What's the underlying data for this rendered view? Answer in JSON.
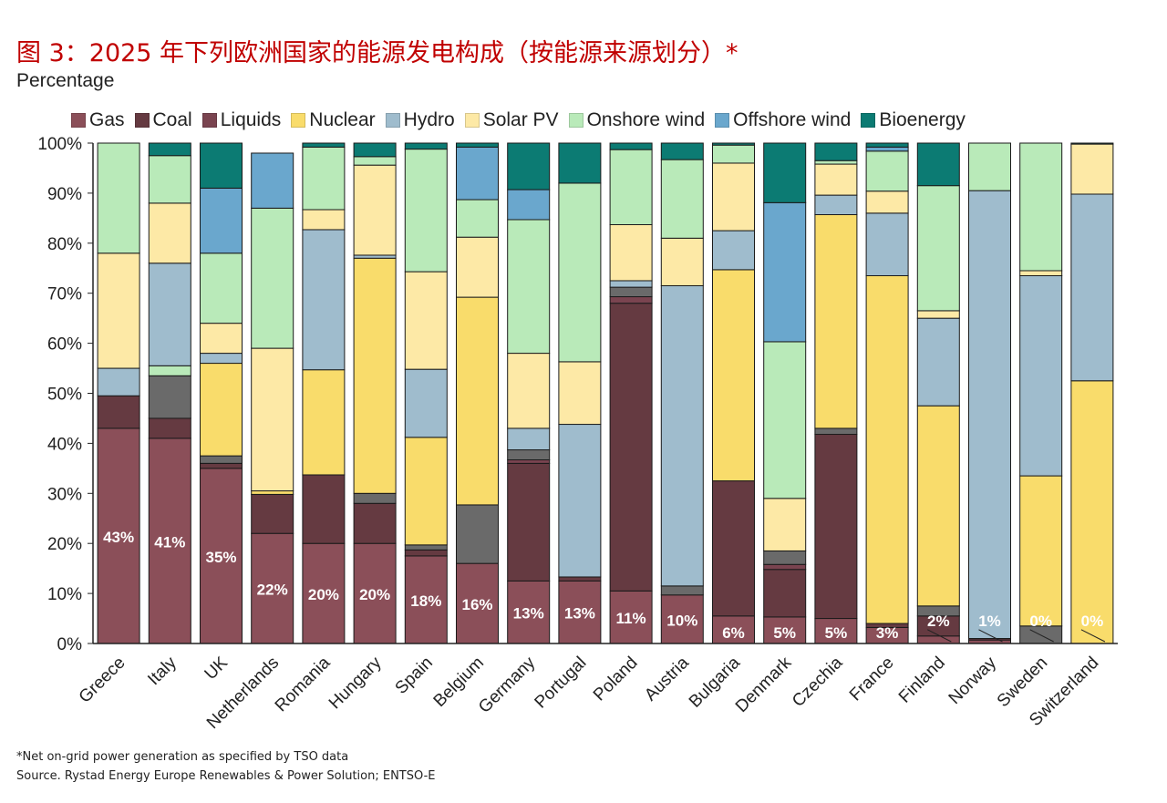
{
  "title": "图 3：2025 年下列欧洲国家的能源发电构成（按能源来源划分）*",
  "footnote": "*Net on-grid power generation as specified by TSO data",
  "source": "Source. Rystad Energy Europe Renewables & Power Solution; ENTSO-E",
  "colors": {
    "Gas": "#8b4f59",
    "Coal": "#653a41",
    "Liquids": "#7a4450",
    "Nuclear": "#f9dc6b",
    "Hydro": "#9fbccd",
    "Solar PV": "#fde9a6",
    "Onshore wind": "#b9eab9",
    "Offshore wind": "#6aa7cd",
    "Bioenergy": "#0c7b73",
    "Other": "#6a6a6a"
  },
  "chart_data": {
    "type": "bar",
    "stacked": true,
    "title": "图 3：2025 年下列欧洲国家的能源发电构成（按能源来源划分）*",
    "ylabel": "Percentage",
    "ylim": [
      0,
      100
    ],
    "yticks": [
      "0%",
      "10%",
      "20%",
      "30%",
      "40%",
      "50%",
      "60%",
      "70%",
      "80%",
      "90%",
      "100%"
    ],
    "legend": [
      "Gas",
      "Coal",
      "Liquids",
      "Nuclear",
      "Hydro",
      "Solar PV",
      "Onshore wind",
      "Offshore wind",
      "Bioenergy"
    ],
    "categories": [
      "Greece",
      "Italy",
      "UK",
      "Netherlands",
      "Romania",
      "Hungary",
      "Spain",
      "Belgium",
      "Germany",
      "Portugal",
      "Poland",
      "Austria",
      "Bulgaria",
      "Denmark",
      "Czechia",
      "France",
      "Finland",
      "Norway",
      "Sweden",
      "Switzerland"
    ],
    "gas_labels": [
      "43%",
      "41%",
      "35%",
      "22%",
      "20%",
      "20%",
      "18%",
      "16%",
      "13%",
      "13%",
      "11%",
      "10%",
      "6%",
      "5%",
      "5%",
      "3%",
      "2%",
      "1%",
      "0%",
      "0%"
    ],
    "stacks": [
      [
        [
          "Gas",
          43
        ],
        [
          "Coal",
          6.5
        ],
        [
          "Hydro",
          5.5
        ],
        [
          "Solar PV",
          23
        ],
        [
          "Onshore wind",
          22
        ]
      ],
      [
        [
          "Gas",
          41
        ],
        [
          "Coal",
          4
        ],
        [
          "Other",
          8.5
        ],
        [
          "Onshore wind",
          2
        ],
        [
          "Hydro",
          20.5
        ],
        [
          "Solar PV",
          12
        ],
        [
          "Onshore wind",
          9.5
        ],
        [
          "Bioenergy",
          2.5
        ]
      ],
      [
        [
          "Gas",
          35
        ],
        [
          "Coal",
          1
        ],
        [
          "Other",
          1.5
        ],
        [
          "Nuclear",
          18.5
        ],
        [
          "Hydro",
          2
        ],
        [
          "Solar PV",
          6
        ],
        [
          "Onshore wind",
          14
        ],
        [
          "Offshore wind",
          13
        ],
        [
          "Bioenergy",
          9
        ]
      ],
      [
        [
          "Gas",
          22
        ],
        [
          "Coal",
          7.8
        ],
        [
          "Nuclear",
          0.7
        ],
        [
          "Solar PV",
          28.5
        ],
        [
          "Onshore wind",
          28
        ],
        [
          "Offshore wind",
          11
        ]
      ],
      [
        [
          "Gas",
          20
        ],
        [
          "Coal",
          13.7
        ],
        [
          "Nuclear",
          21
        ],
        [
          "Hydro",
          28
        ],
        [
          "Solar PV",
          4
        ],
        [
          "Onshore wind",
          12.5
        ],
        [
          "Bioenergy",
          0.8
        ]
      ],
      [
        [
          "Gas",
          20
        ],
        [
          "Coal",
          8
        ],
        [
          "Other",
          2
        ],
        [
          "Nuclear",
          47
        ],
        [
          "Hydro",
          0.6
        ],
        [
          "Solar PV",
          18
        ],
        [
          "Onshore wind",
          1.7
        ],
        [
          "Bioenergy",
          2.7
        ]
      ],
      [
        [
          "Gas",
          17.5
        ],
        [
          "Coal",
          1.2
        ],
        [
          "Other",
          1
        ],
        [
          "Nuclear",
          21.5
        ],
        [
          "Hydro",
          13.6
        ],
        [
          "Solar PV",
          19.5
        ],
        [
          "Onshore wind",
          24.5
        ],
        [
          "Bioenergy",
          1.2
        ]
      ],
      [
        [
          "Gas",
          16
        ],
        [
          "Other",
          11.7
        ],
        [
          "Nuclear",
          41.5
        ],
        [
          "Solar PV",
          12
        ],
        [
          "Onshore wind",
          7.5
        ],
        [
          "Offshore wind",
          10.5
        ],
        [
          "Bioenergy",
          0.8
        ]
      ],
      [
        [
          "Gas",
          12.5
        ],
        [
          "Coal",
          23.5
        ],
        [
          "Liquids",
          0.7
        ],
        [
          "Other",
          2
        ],
        [
          "Hydro",
          4.3
        ],
        [
          "Solar PV",
          15
        ],
        [
          "Onshore wind",
          26.7
        ],
        [
          "Offshore wind",
          6
        ],
        [
          "Bioenergy",
          9.3
        ]
      ],
      [
        [
          "Gas",
          12.5
        ],
        [
          "Coal",
          0.8
        ],
        [
          "Hydro",
          30.5
        ],
        [
          "Solar PV",
          12.5
        ],
        [
          "Onshore wind",
          35.7
        ],
        [
          "Bioenergy",
          8
        ]
      ],
      [
        [
          "Gas",
          10.5
        ],
        [
          "Coal",
          57.5
        ],
        [
          "Liquids",
          1.3
        ],
        [
          "Other",
          1.9
        ],
        [
          "Hydro",
          1.3
        ],
        [
          "Solar PV",
          11.2
        ],
        [
          "Onshore wind",
          15
        ],
        [
          "Bioenergy",
          1.3
        ]
      ],
      [
        [
          "Gas",
          9.7
        ],
        [
          "Other",
          1.8
        ],
        [
          "Hydro",
          60
        ],
        [
          "Solar PV",
          9.5
        ],
        [
          "Onshore wind",
          15.7
        ],
        [
          "Bioenergy",
          3.3
        ]
      ],
      [
        [
          "Gas",
          5.5
        ],
        [
          "Coal",
          27
        ],
        [
          "Nuclear",
          42.2
        ],
        [
          "Hydro",
          7.8
        ],
        [
          "Solar PV",
          13.5
        ],
        [
          "Onshore wind",
          3.6
        ],
        [
          "Bioenergy",
          0.4
        ]
      ],
      [
        [
          "Gas",
          5.3
        ],
        [
          "Coal",
          9.5
        ],
        [
          "Liquids",
          1
        ],
        [
          "Other",
          2.7
        ],
        [
          "Solar PV",
          10.5
        ],
        [
          "Onshore wind",
          31.3
        ],
        [
          "Offshore wind",
          27.8
        ],
        [
          "Bioenergy",
          11.9
        ]
      ],
      [
        [
          "Gas",
          5
        ],
        [
          "Coal",
          36.8
        ],
        [
          "Other",
          1.2
        ],
        [
          "Nuclear",
          42.7
        ],
        [
          "Hydro",
          3.9
        ],
        [
          "Solar PV",
          6.2
        ],
        [
          "Onshore wind",
          0.7
        ],
        [
          "Bioenergy",
          3.5
        ]
      ],
      [
        [
          "Gas",
          3.2
        ],
        [
          "Coal",
          0.8
        ],
        [
          "Nuclear",
          69.5
        ],
        [
          "Hydro",
          12.5
        ],
        [
          "Solar PV",
          4.4
        ],
        [
          "Onshore wind",
          8
        ],
        [
          "Offshore wind",
          0.8
        ],
        [
          "Bioenergy",
          0.8
        ]
      ],
      [
        [
          "Gas",
          1.5
        ],
        [
          "Coal",
          4
        ],
        [
          "Other",
          2
        ],
        [
          "Nuclear",
          40
        ],
        [
          "Hydro",
          17.5
        ],
        [
          "Solar PV",
          1.5
        ],
        [
          "Onshore wind",
          25
        ],
        [
          "Bioenergy",
          8.5
        ]
      ],
      [
        [
          "Gas",
          0.7
        ],
        [
          "Coal",
          0.3
        ],
        [
          "Hydro",
          89.5
        ],
        [
          "Onshore wind",
          9.5
        ]
      ],
      [
        [
          "Other",
          3.5
        ],
        [
          "Nuclear",
          30
        ],
        [
          "Hydro",
          40
        ],
        [
          "Solar PV",
          1
        ],
        [
          "Onshore wind",
          25.5
        ]
      ],
      [
        [
          "Nuclear",
          52.5
        ],
        [
          "Hydro",
          37.3
        ],
        [
          "Solar PV",
          10
        ],
        [
          "Bioenergy",
          0.2
        ]
      ]
    ]
  }
}
